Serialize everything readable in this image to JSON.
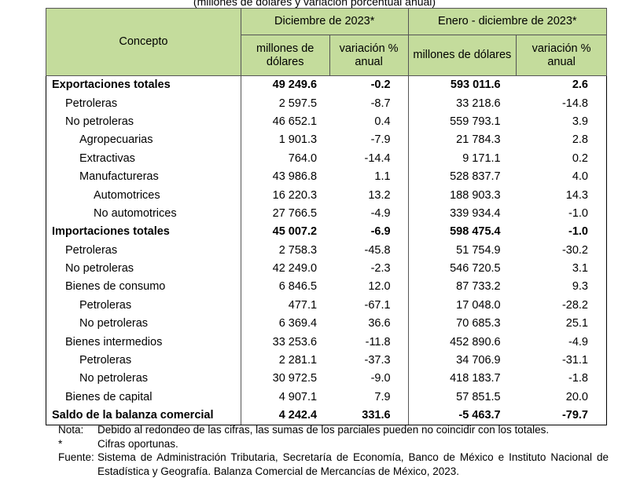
{
  "subtitle": "(millones de dólares y variación porcentual anual)",
  "header": {
    "concepto": "Concepto",
    "period1": "Diciembre de 2023*",
    "period2": "Enero - diciembre de 2023*",
    "col_millones": "millones de dólares",
    "col_variacion": "variación % anual"
  },
  "rows": [
    {
      "label": "Exportaciones totales",
      "level": 0,
      "bold": true,
      "v": [
        "49 249.6",
        "-0.2",
        "593 011.6",
        "2.6"
      ]
    },
    {
      "label": "Petroleras",
      "level": 1,
      "v": [
        "2 597.5",
        "-8.7",
        "33 218.6",
        "-14.8"
      ]
    },
    {
      "label": "No petroleras",
      "level": 1,
      "v": [
        "46 652.1",
        "0.4",
        "559 793.1",
        "3.9"
      ]
    },
    {
      "label": "Agropecuarias",
      "level": 2,
      "v": [
        "1 901.3",
        "-7.9",
        "21 784.3",
        "2.8"
      ]
    },
    {
      "label": "Extractivas",
      "level": 2,
      "v": [
        "764.0",
        "-14.4",
        "9 171.1",
        "0.2"
      ]
    },
    {
      "label": "Manufactureras",
      "level": 2,
      "v": [
        "43 986.8",
        "1.1",
        "528 837.7",
        "4.0"
      ]
    },
    {
      "label": "Automotrices",
      "level": 3,
      "v": [
        "16 220.3",
        "13.2",
        "188 903.3",
        "14.3"
      ]
    },
    {
      "label": "No automotrices",
      "level": 3,
      "v": [
        "27 766.5",
        "-4.9",
        "339 934.4",
        "-1.0"
      ]
    },
    {
      "label": "Importaciones totales",
      "level": 0,
      "bold": true,
      "v": [
        "45 007.2",
        "-6.9",
        "598 475.4",
        "-1.0"
      ]
    },
    {
      "label": "Petroleras",
      "level": 1,
      "v": [
        "2 758.3",
        "-45.8",
        "51 754.9",
        "-30.2"
      ]
    },
    {
      "label": "No petroleras",
      "level": 1,
      "v": [
        "42 249.0",
        "-2.3",
        "546 720.5",
        "3.1"
      ]
    },
    {
      "label": "Bienes de consumo",
      "level": 1,
      "v": [
        "6 846.5",
        "12.0",
        "87 733.2",
        "9.3"
      ]
    },
    {
      "label": "Petroleras",
      "level": 2,
      "v": [
        "477.1",
        "-67.1",
        "17 048.0",
        "-28.2"
      ]
    },
    {
      "label": "No petroleras",
      "level": 2,
      "v": [
        "6 369.4",
        "36.6",
        "70 685.3",
        "25.1"
      ]
    },
    {
      "label": "Bienes intermedios",
      "level": 1,
      "v": [
        "33 253.6",
        "-11.8",
        "452 890.6",
        "-4.9"
      ]
    },
    {
      "label": "Petroleras",
      "level": 2,
      "v": [
        "2 281.1",
        "-37.3",
        "34 706.9",
        "-31.1"
      ]
    },
    {
      "label": "No petroleras",
      "level": 2,
      "v": [
        "30 972.5",
        "-9.0",
        "418 183.7",
        "-1.8"
      ]
    },
    {
      "label": "Bienes de capital",
      "level": 1,
      "v": [
        "4 907.1",
        "7.9",
        "57 851.5",
        "20.0"
      ]
    },
    {
      "label": "Saldo de la balanza comercial",
      "level": 0,
      "bold": true,
      "v": [
        "4 242.4",
        "331.6",
        "-5 463.7",
        "-79.7"
      ]
    }
  ],
  "notes": [
    {
      "key": "Nota:",
      "text": "Debido al redondeo de las cifras, las sumas de los parciales pueden no coincidir con los totales."
    },
    {
      "key": "*",
      "text": "Cifras oportunas."
    },
    {
      "key": "Fuente:",
      "text": "Sistema de Administración Tributaria, Secretaría de Economía, Banco de México e Instituto Nacional de Estadística y Geografía. Balanza Comercial de Mercancías de México, 2023."
    }
  ],
  "colors": {
    "header_bg": "#c4dc9c"
  }
}
